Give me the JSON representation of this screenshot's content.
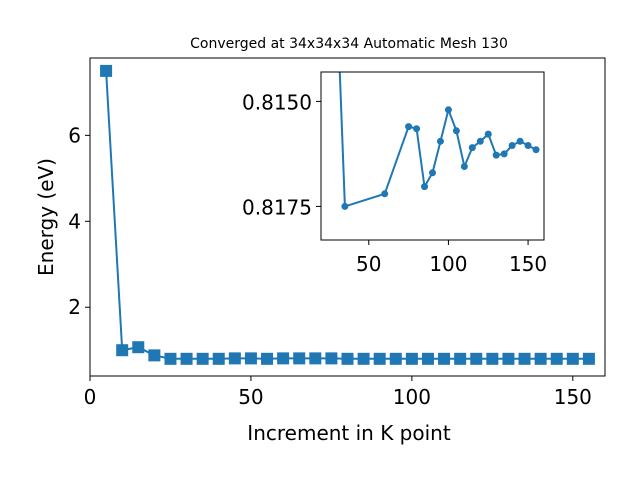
{
  "chart_data": {
    "type": "line",
    "title": "Converged at 34x34x34 Automatic Mesh 130",
    "xlabel": "Increment in K point",
    "ylabel": "Energy (eV)",
    "xlim": [
      0,
      160
    ],
    "ylim": [
      0.4,
      7.8
    ],
    "xticks": [
      "0",
      "50",
      "100",
      "150"
    ],
    "yticks": [
      "2",
      "4",
      "6"
    ],
    "grid": false,
    "legend": "none",
    "marker": "square",
    "color": "#1f77b4",
    "series": [
      {
        "x": [
          5,
          10,
          15,
          20,
          25,
          30,
          35,
          40,
          45,
          50,
          55,
          60,
          65,
          70,
          75,
          80,
          85,
          90,
          95,
          100,
          105,
          110,
          115,
          120,
          125,
          130,
          135,
          140,
          145,
          150,
          155
        ],
        "y": [
          7.5,
          1.0,
          1.07,
          0.88,
          0.8,
          0.8,
          0.8,
          0.8,
          0.81,
          0.81,
          0.8,
          0.81,
          0.81,
          0.81,
          0.81,
          0.8,
          0.8,
          0.8,
          0.8,
          0.8,
          0.8,
          0.8,
          0.8,
          0.8,
          0.8,
          0.8,
          0.8,
          0.8,
          0.8,
          0.8,
          0.8
        ]
      }
    ],
    "inset": {
      "type": "line",
      "marker": "circle",
      "xlim": [
        20,
        160
      ],
      "ylim": [
        0.8183,
        0.8143
      ],
      "y_inverted": true,
      "xticks": [
        "50",
        "100",
        "150"
      ],
      "yticks": [
        "0.8150",
        "0.8175"
      ],
      "series": [
        {
          "x": [
            30,
            35,
            60,
            75,
            80,
            85,
            90,
            95,
            100,
            105,
            110,
            115,
            120,
            125,
            130,
            135,
            140,
            145,
            150,
            155
          ],
          "y": [
            0.8125,
            0.8175,
            0.8172,
            0.8156,
            0.81565,
            0.81703,
            0.8167,
            0.81595,
            0.8152,
            0.8157,
            0.81655,
            0.8161,
            0.81595,
            0.81578,
            0.81628,
            0.81625,
            0.81605,
            0.81595,
            0.81605,
            0.81615
          ]
        }
      ]
    }
  }
}
